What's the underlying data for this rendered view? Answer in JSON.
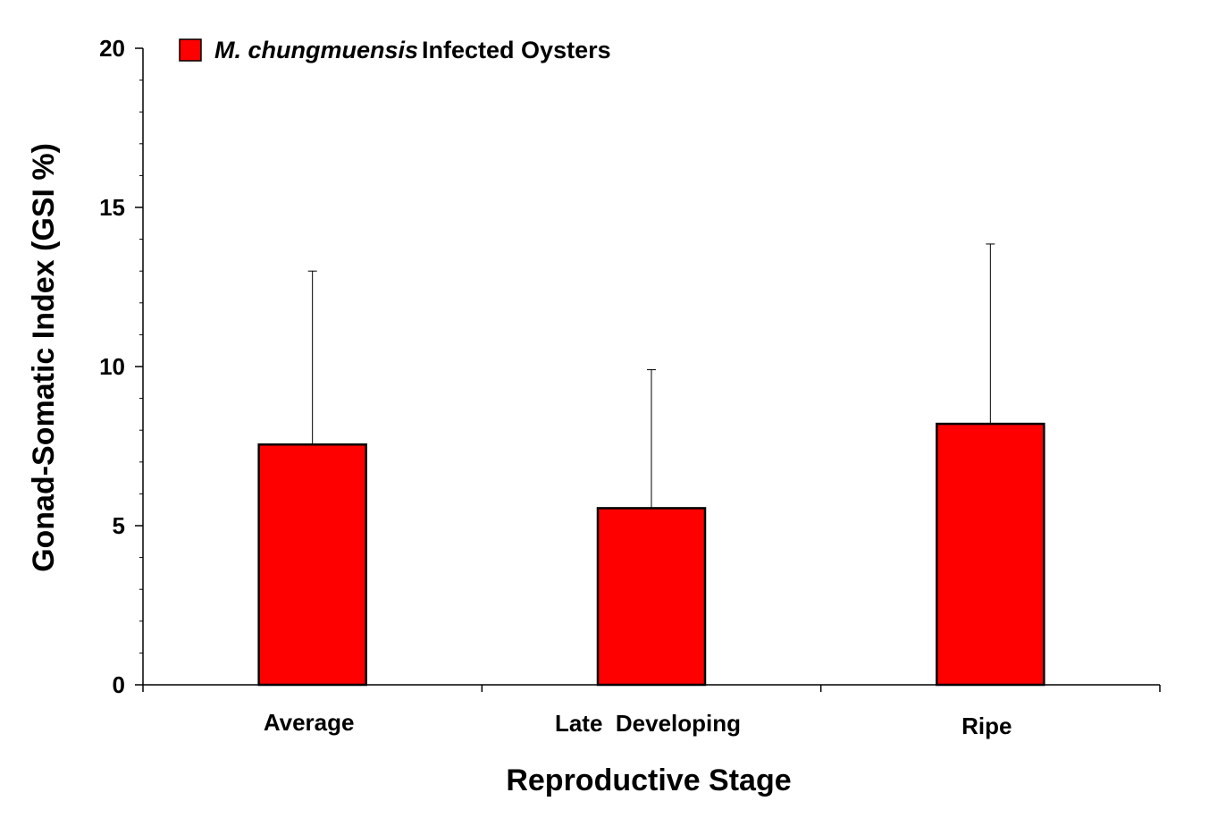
{
  "chart_data": {
    "type": "bar",
    "title": "",
    "xlabel": "Reproductive Stage",
    "ylabel": "Gonad-Somatic Index (GSI %)",
    "ylim": [
      0,
      20
    ],
    "yticks": [
      "0",
      "5",
      "10",
      "15",
      "20"
    ],
    "categories": [
      "Average",
      "Late  Developing",
      "Ripe"
    ],
    "series": [
      {
        "name_italic": "M. chungmuensis",
        "name_rest": "Infected Oysters",
        "color": "#ff0000",
        "values": [
          7.55,
          5.55,
          8.2
        ],
        "error_upper": [
          13.0,
          9.9,
          13.85
        ]
      }
    ],
    "legend_position": "top-left",
    "grid": false
  }
}
